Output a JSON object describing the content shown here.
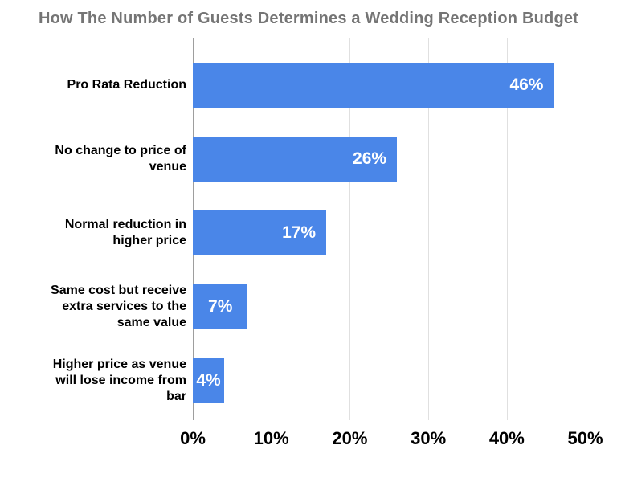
{
  "title": "How The Number of Guests Determines a Wedding Reception Budget",
  "colors": {
    "bar": "#4a86e8",
    "title_text": "#757575",
    "category_text": "#000000",
    "value_text": "#ffffff",
    "gridline": "#e0e0e0",
    "axis_line": "#9e9e9e"
  },
  "chart_data": {
    "type": "bar",
    "orientation": "horizontal",
    "title": "How The Number of Guests Determines a Wedding Reception Budget",
    "categories": [
      "Pro Rata Reduction",
      "No change to price of venue",
      "Normal reduction in higher price",
      "Same cost but receive extra services to the same value",
      "Higher price as venue will lose income from bar"
    ],
    "values": [
      46,
      26,
      17,
      7,
      4
    ],
    "value_labels": [
      "46%",
      "26%",
      "17%",
      "7%",
      "4%"
    ],
    "xticks": [
      0,
      10,
      20,
      30,
      40,
      50
    ],
    "xtick_labels": [
      "0%",
      "10%",
      "20%",
      "30%",
      "40%",
      "50%"
    ],
    "xlim": [
      0,
      52.5
    ],
    "xlabel": "",
    "ylabel": "",
    "grid": "vertical",
    "legend": "none",
    "small_label_threshold": 10
  }
}
